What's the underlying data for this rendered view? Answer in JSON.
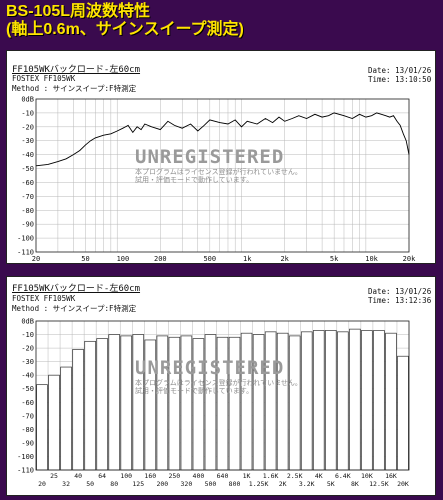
{
  "header": {
    "line1": "BS-105L周波数特性",
    "line2": "(軸上0.6m、サインスイープ測定)"
  },
  "colors": {
    "background": "#3a0a4e",
    "title": "#ffe400",
    "grid": "#b8b8b8",
    "trace": "#000000"
  },
  "panels": [
    {
      "title": "FF105WKバックロード-左60cm",
      "model": "FOSTEX FF105WK",
      "method": "Method : サインスイープ:F特測定",
      "date": "Date: 13/01/26",
      "time": "Time: 13:10:50",
      "watermark": "UNREGISTERED",
      "watermark_note1": "本プログラムはライセンス登録が行われていません。",
      "watermark_note2": "試用・評価モードで動作しています。"
    },
    {
      "title": "FF105WKバックロード-左60cm",
      "model": "FOSTEX FF105WK",
      "method": "Method : サインスイープ:F特測定",
      "date": "Date: 13/01/26",
      "time": "Time: 13:12:36",
      "watermark": "UNREGISTERED",
      "watermark_note1": "本プログラムはライセンス登録が行われていません。",
      "watermark_note2": "試用・評価モードで動作しています。"
    }
  ],
  "chart_data": [
    {
      "type": "line",
      "title": "FF105WKバックロード-左60cm",
      "xscale": "log",
      "xlim": [
        20,
        20000
      ],
      "ylim": [
        -110,
        0
      ],
      "ylabel_unit": "dB",
      "grid": true,
      "xticks": [
        20,
        50,
        100,
        200,
        500,
        1000,
        2000,
        5000,
        10000,
        20000
      ],
      "xtick_labels": [
        "20",
        "50",
        "100",
        "200",
        "500",
        "1k",
        "2k",
        "5k",
        "10k",
        "20k"
      ],
      "yticks": [
        0,
        -10,
        -20,
        -30,
        -40,
        -50,
        -60,
        -70,
        -80,
        -90,
        -100,
        -110
      ],
      "ytick_labels": [
        "0dB",
        "-10",
        "-20",
        "-30",
        "-40",
        "-50",
        "-60",
        "-70",
        "-80",
        "-90",
        "-100",
        "-110"
      ],
      "x": [
        20,
        25,
        30,
        35,
        40,
        45,
        50,
        55,
        60,
        70,
        80,
        90,
        100,
        110,
        120,
        130,
        140,
        150,
        170,
        200,
        230,
        260,
        300,
        350,
        400,
        450,
        500,
        600,
        700,
        800,
        900,
        1000,
        1200,
        1400,
        1600,
        1800,
        2000,
        2300,
        2600,
        3000,
        3500,
        4000,
        4500,
        5000,
        6000,
        7000,
        8000,
        9000,
        10000,
        11000,
        12000,
        13000,
        14000,
        15000,
        16000,
        17000,
        18000,
        19000,
        20000
      ],
      "y": [
        -48,
        -47,
        -45,
        -43,
        -40,
        -37,
        -33,
        -30,
        -28,
        -26,
        -25,
        -23,
        -21,
        -19,
        -24,
        -20,
        -22,
        -18,
        -20,
        -22,
        -16,
        -19,
        -21,
        -18,
        -23,
        -19,
        -15,
        -17,
        -18,
        -15,
        -20,
        -16,
        -18,
        -14,
        -17,
        -13,
        -16,
        -14,
        -12,
        -14,
        -11,
        -13,
        -12,
        -10,
        -12,
        -14,
        -11,
        -13,
        -12,
        -10,
        -11,
        -12,
        -13,
        -12,
        -16,
        -19,
        -25,
        -30,
        -40
      ]
    },
    {
      "type": "bar",
      "title": "FF105WKバックロード-左60cm",
      "ylim": [
        -110,
        0
      ],
      "grid": true,
      "yticks": [
        0,
        -10,
        -20,
        -30,
        -40,
        -50,
        -60,
        -70,
        -80,
        -90,
        -100,
        -110
      ],
      "ytick_labels": [
        "0dB",
        "-10",
        "-20",
        "-30",
        "-40",
        "-50",
        "-60",
        "-70",
        "-80",
        "-90",
        "-100",
        "-110"
      ],
      "categories": [
        "20",
        "25",
        "32",
        "40",
        "50",
        "64",
        "80",
        "100",
        "125",
        "160",
        "200",
        "250",
        "320",
        "400",
        "500",
        "640",
        "800",
        "1K",
        "1.25K",
        "1.6K",
        "2K",
        "2.5K",
        "3.2K",
        "4K",
        "5K",
        "6.4K",
        "8K",
        "10K",
        "12.5K",
        "16K",
        "20K"
      ],
      "category_labels_row1": [
        "25",
        "40",
        "64",
        "100",
        "160",
        "250",
        "400",
        "640",
        "1K",
        "1.6K",
        "2.5K",
        "4K",
        "6.4K",
        "10K",
        "16K"
      ],
      "category_labels_row2": [
        "20",
        "32",
        "50",
        "80",
        "125",
        "200",
        "320",
        "500",
        "800",
        "1.25K",
        "2K",
        "3.2K",
        "5K",
        "8K",
        "12.5K",
        "20K"
      ],
      "values": [
        -47,
        -40,
        -34,
        -21,
        -15,
        -13,
        -10,
        -11,
        -10,
        -14,
        -11,
        -12,
        -11,
        -13,
        -10,
        -12,
        -12,
        -9,
        -10,
        -8,
        -9,
        -11,
        -8,
        -7,
        -7,
        -8,
        -6,
        -7,
        -7,
        -9,
        -26
      ]
    }
  ]
}
